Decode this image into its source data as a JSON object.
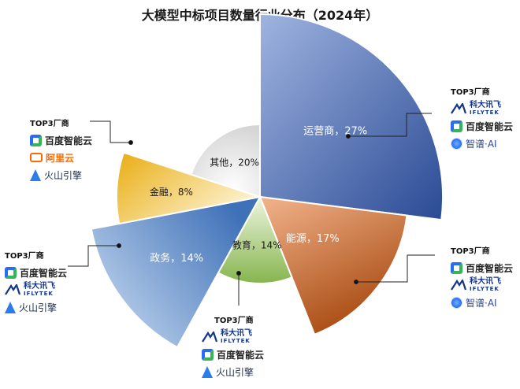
{
  "title": "大模型中标项目数量行业分布（2024年）",
  "chart_data": {
    "type": "pie",
    "title": "大模型中标项目数量行业分布（2024年）",
    "slices": [
      {
        "label": "运营商，27%",
        "name": "运营商",
        "value": 27,
        "color": "#3a5da6"
      },
      {
        "label": "能源，17%",
        "name": "能源",
        "value": 17,
        "color": "#c8621f"
      },
      {
        "label": "教育，14%",
        "name": "教育",
        "value": 14,
        "color": "#8bbb57"
      },
      {
        "label": "政务，14%",
        "name": "政务",
        "value": 14,
        "color": "#5e8ec7"
      },
      {
        "label": "金融，8%",
        "name": "金融",
        "value": 8,
        "color": "#edb928"
      },
      {
        "label": "其他，20%",
        "name": "其他",
        "value": 20,
        "color": "#d9d9d9"
      }
    ]
  },
  "vendors": {
    "telecom": {
      "title": "TOP3厂商",
      "items": [
        "科大讯飞",
        "百度智能云",
        "智谱·AI"
      ],
      "sub": "IFLYTEK"
    },
    "energy": {
      "title": "TOP3厂商",
      "items": [
        "百度智能云",
        "科大讯飞",
        "智谱·AI"
      ],
      "sub": "IFLYTEK"
    },
    "education": {
      "title": "TOP3厂商",
      "items": [
        "科大讯飞",
        "百度智能云",
        "火山引擎"
      ],
      "sub": "IFLYTEK"
    },
    "government": {
      "title": "TOP3厂商",
      "items": [
        "百度智能云",
        "科大讯飞",
        "火山引擎"
      ],
      "sub": "IFLYTEK"
    },
    "finance": {
      "title": "TOP3厂商",
      "items": [
        "百度智能云",
        "阿里云",
        "火山引擎"
      ]
    }
  }
}
